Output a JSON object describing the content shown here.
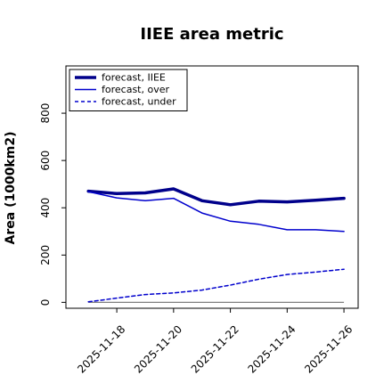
{
  "chart_data": {
    "type": "line",
    "title": "IIEE area metric",
    "xlabel": "",
    "ylabel": "Area (1000km2)",
    "x": [
      "2025-11-17",
      "2025-11-18",
      "2025-11-19",
      "2025-11-20",
      "2025-11-21",
      "2025-11-22",
      "2025-11-23",
      "2025-11-24",
      "2025-11-25",
      "2025-11-26"
    ],
    "xticks": [
      {
        "label": "2025-11-18",
        "color": "#228b22"
      },
      {
        "label": "2025-11-20",
        "color": "#000000"
      },
      {
        "label": "2025-11-22",
        "color": "#000000"
      },
      {
        "label": "2025-11-24",
        "color": "#000000"
      },
      {
        "label": "2025-11-26",
        "color": "#000000"
      }
    ],
    "yticks": [
      0,
      200,
      400,
      600,
      800
    ],
    "xlim": [
      "2025-11-16T05:00",
      "2025-11-26T12:00"
    ],
    "ylim": [
      -25,
      1000
    ],
    "grid": false,
    "legend_position": "top-left",
    "series": [
      {
        "name": "forecast, IIEE",
        "color": "#00008b",
        "style": "solid-thick",
        "values": [
          470,
          460,
          463,
          480,
          430,
          413,
          428,
          425,
          432,
          440
        ]
      },
      {
        "name": "forecast, over",
        "color": "#0000cd",
        "style": "solid",
        "values": [
          468,
          442,
          430,
          440,
          378,
          343,
          330,
          307,
          307,
          300
        ]
      },
      {
        "name": "forecast, under",
        "color": "#0000cd",
        "style": "dashed",
        "values": [
          2,
          18,
          33,
          40,
          52,
          73,
          98,
          118,
          128,
          140
        ]
      }
    ],
    "baseline": {
      "value": 0,
      "color": "#808080"
    }
  }
}
